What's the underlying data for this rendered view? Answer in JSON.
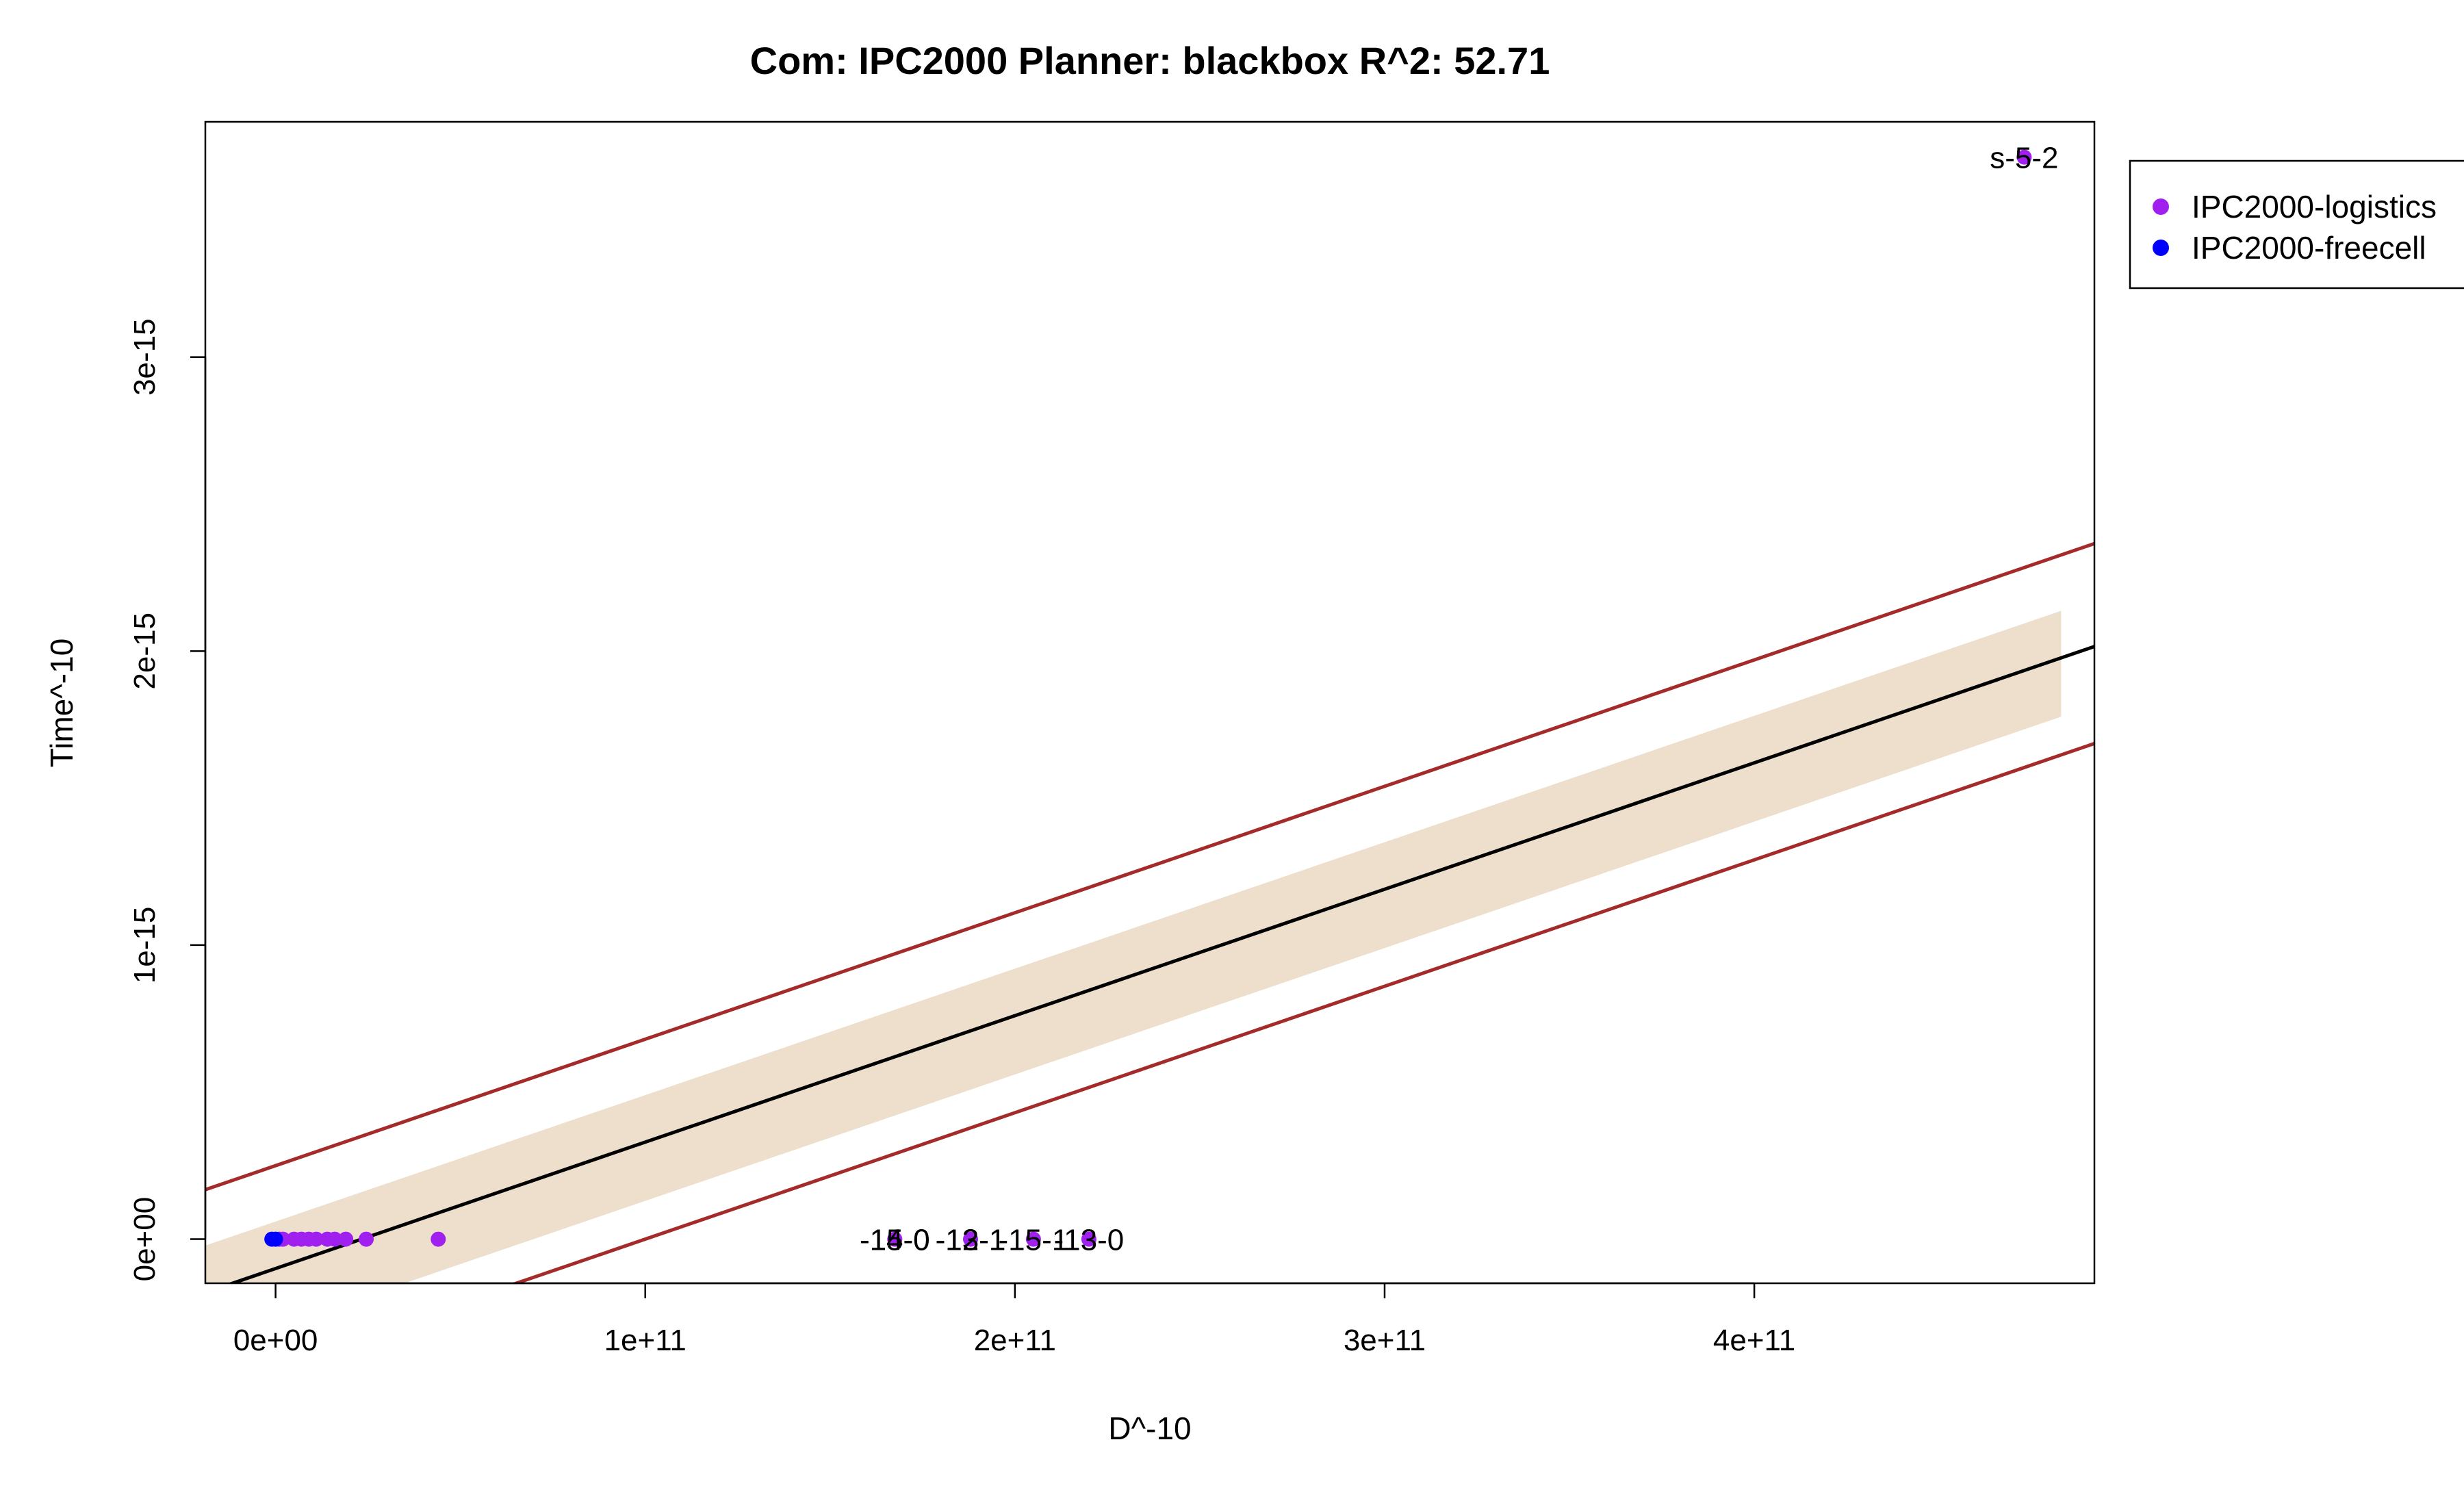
{
  "chart_data": {
    "type": "scatter",
    "title": "Com: IPC2000 Planner: blackbox R^2: 52.71",
    "xlabel": "D^-10",
    "ylabel": "Time^-10",
    "xlim": [
      -19000000000.0,
      492000000000.0
    ],
    "ylim": [
      -1.5e-16,
      3.8e-15
    ],
    "x_ticks": [
      {
        "value": 0,
        "label": "0e+00"
      },
      {
        "value": 100000000000.0,
        "label": "1e+11"
      },
      {
        "value": 200000000000.0,
        "label": "2e+11"
      },
      {
        "value": 300000000000.0,
        "label": "3e+11"
      },
      {
        "value": 400000000000.0,
        "label": "4e+11"
      }
    ],
    "y_ticks": [
      {
        "value": 0,
        "label": "0e+00"
      },
      {
        "value": 1e-15,
        "label": "1e-15"
      },
      {
        "value": 2e-15,
        "label": "2e-15"
      },
      {
        "value": 3e-15,
        "label": "3e-15"
      }
    ],
    "grid": false,
    "legend_position": "outside-top-right",
    "series": [
      {
        "name": "IPC2000-logistics",
        "color": "#a020f0",
        "points": [
          {
            "x": 1000000000.0,
            "y": 0
          },
          {
            "x": 2000000000.0,
            "y": 0
          },
          {
            "x": 5000000000.0,
            "y": 0
          },
          {
            "x": 7000000000.0,
            "y": 0
          },
          {
            "x": 9000000000.0,
            "y": 0
          },
          {
            "x": 11000000000.0,
            "y": 0
          },
          {
            "x": 14000000000.0,
            "y": 0
          },
          {
            "x": 16000000000.0,
            "y": 0
          },
          {
            "x": 19000000000.0,
            "y": 0
          },
          {
            "x": 24500000000.0,
            "y": 0
          },
          {
            "x": 44000000000.0,
            "y": 0
          },
          {
            "x": 167500000000.0,
            "y": 0
          },
          {
            "x": 188000000000.0,
            "y": 0
          },
          {
            "x": 205000000000.0,
            "y": 0
          },
          {
            "x": 220000000000.0,
            "y": 0
          },
          {
            "x": 473000000000.0,
            "y": 3.68e-15
          }
        ]
      },
      {
        "name": "IPC2000-freecell",
        "color": "#0000ff",
        "points": [
          {
            "x": -1000000000.0,
            "y": 0
          },
          {
            "x": 0,
            "y": 0
          }
        ]
      }
    ],
    "point_labels": [
      {
        "x": 167500000000.0,
        "y": 0,
        "text": "-14-0"
      },
      {
        "x": 167500000000.0,
        "y": 0,
        "text": "-15-0"
      },
      {
        "x": 188000000000.0,
        "y": 0,
        "text": "-12-1"
      },
      {
        "x": 188000000000.0,
        "y": 0,
        "text": "-13-1"
      },
      {
        "x": 205000000000.0,
        "y": 0,
        "text": "-15-1"
      },
      {
        "x": 220000000000.0,
        "y": 0,
        "text": "-13-0"
      },
      {
        "x": 473000000000.0,
        "y": 3.68e-15,
        "text": "s-5-2"
      }
    ],
    "fit": {
      "color": "#000000",
      "slope": 4.3e-27,
      "intercept": -1e-16
    },
    "confidence_band": {
      "fill": "#eedfcc",
      "x_end": 483000000000.0,
      "lower_offset": -2e-16,
      "upper_offset": 1.6e-16
    },
    "prediction_band": {
      "color": "#a52a2a",
      "lower_offset": -3.3e-16,
      "upper_offset": 3.5e-16
    }
  }
}
